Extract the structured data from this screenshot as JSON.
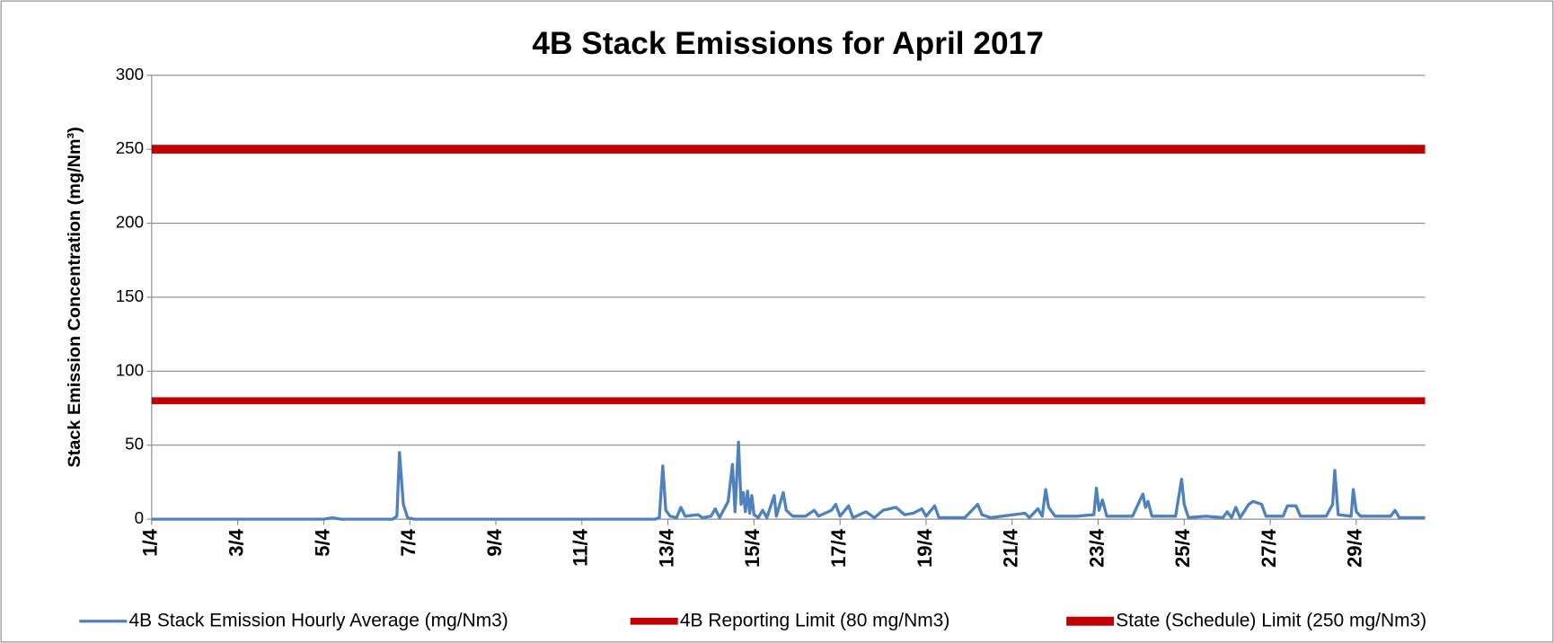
{
  "chart_data": {
    "type": "line",
    "title": "4B Stack Emissions for April 2017",
    "y_label": "Stack Emission Concentration (mg/Nm³)",
    "xlim": [
      0,
      29.6
    ],
    "xticks": [
      {
        "value": 0,
        "label": "1/4"
      },
      {
        "value": 2,
        "label": "3/4"
      },
      {
        "value": 4,
        "label": "5/4"
      },
      {
        "value": 6,
        "label": "7/4"
      },
      {
        "value": 8,
        "label": "9/4"
      },
      {
        "value": 10,
        "label": "11/4"
      },
      {
        "value": 12,
        "label": "13/4"
      },
      {
        "value": 14,
        "label": "15/4"
      },
      {
        "value": 16,
        "label": "17/4"
      },
      {
        "value": 18,
        "label": "19/4"
      },
      {
        "value": 20,
        "label": "21/4"
      },
      {
        "value": 22,
        "label": "23/4"
      },
      {
        "value": 24,
        "label": "25/4"
      },
      {
        "value": 26,
        "label": "27/4"
      },
      {
        "value": 28,
        "label": "29/4"
      }
    ],
    "ylim": [
      0,
      300
    ],
    "yticks": [
      0,
      50,
      100,
      150,
      200,
      250,
      300
    ],
    "grid": true,
    "legend": "bottom",
    "series": [
      {
        "name": "4B Stack Emission Hourly Average (mg/Nm3)",
        "color": "#4f81bd",
        "width": 3,
        "x": [
          0,
          4.0,
          4.2,
          4.4,
          5.6,
          5.7,
          5.76,
          5.85,
          5.95,
          6.1,
          11.7,
          11.8,
          11.88,
          11.95,
          12.05,
          12.2,
          12.3,
          12.4,
          12.7,
          12.8,
          13.0,
          13.1,
          13.2,
          13.4,
          13.5,
          13.56,
          13.64,
          13.7,
          13.75,
          13.8,
          13.85,
          13.9,
          13.95,
          14.0,
          14.1,
          14.2,
          14.3,
          14.47,
          14.52,
          14.68,
          14.75,
          14.9,
          15.2,
          15.4,
          15.5,
          15.8,
          15.9,
          16.0,
          16.2,
          16.3,
          16.6,
          16.8,
          17.0,
          17.3,
          17.5,
          17.7,
          17.9,
          18.0,
          18.2,
          18.3,
          18.9,
          19.2,
          19.3,
          19.5,
          20.3,
          20.4,
          20.6,
          20.7,
          20.78,
          20.85,
          21.0,
          21.5,
          21.9,
          21.96,
          22.02,
          22.1,
          22.2,
          22.8,
          23.04,
          23.1,
          23.16,
          23.25,
          23.8,
          23.94,
          24.0,
          24.1,
          24.5,
          24.9,
          25.0,
          25.1,
          25.2,
          25.3,
          25.5,
          25.6,
          25.8,
          25.9,
          26.3,
          26.4,
          26.6,
          26.7,
          27.3,
          27.45,
          27.5,
          27.58,
          27.88,
          27.93,
          28.0,
          28.1,
          28.8,
          28.9,
          29.0,
          29.6
        ],
        "values": [
          0,
          0,
          1,
          0,
          0,
          2,
          45,
          10,
          1,
          0,
          0,
          1,
          36,
          6,
          2,
          1,
          8,
          2,
          3,
          1,
          2,
          7,
          1,
          12,
          37,
          5,
          52,
          10,
          18,
          5,
          19,
          4,
          16,
          3,
          1,
          6,
          1,
          16,
          2,
          18,
          6,
          2,
          2,
          6,
          2,
          6,
          10,
          2,
          9,
          1,
          5,
          1,
          6,
          8,
          3,
          4,
          7,
          2,
          9,
          1,
          1,
          10,
          3,
          1,
          4,
          1,
          7,
          2,
          20,
          8,
          2,
          2,
          3,
          21,
          6,
          13,
          2,
          2,
          17,
          8,
          12,
          2,
          2,
          27,
          10,
          1,
          2,
          1,
          5,
          1,
          8,
          1,
          10,
          12,
          10,
          2,
          2,
          9,
          9,
          2,
          2,
          10,
          33,
          3,
          2,
          20,
          5,
          2,
          2,
          6,
          1,
          1
        ]
      },
      {
        "name": "4B Reporting Limit (80 mg/Nm3)",
        "color": "#c00000",
        "width": 7,
        "x": [
          0,
          29.6
        ],
        "values": [
          80,
          80
        ]
      },
      {
        "name": "State (Schedule) Limit (250 mg/Nm3)",
        "color": "#c00000",
        "width": 9,
        "x": [
          0,
          29.6
        ],
        "values": [
          250,
          250
        ]
      }
    ]
  }
}
